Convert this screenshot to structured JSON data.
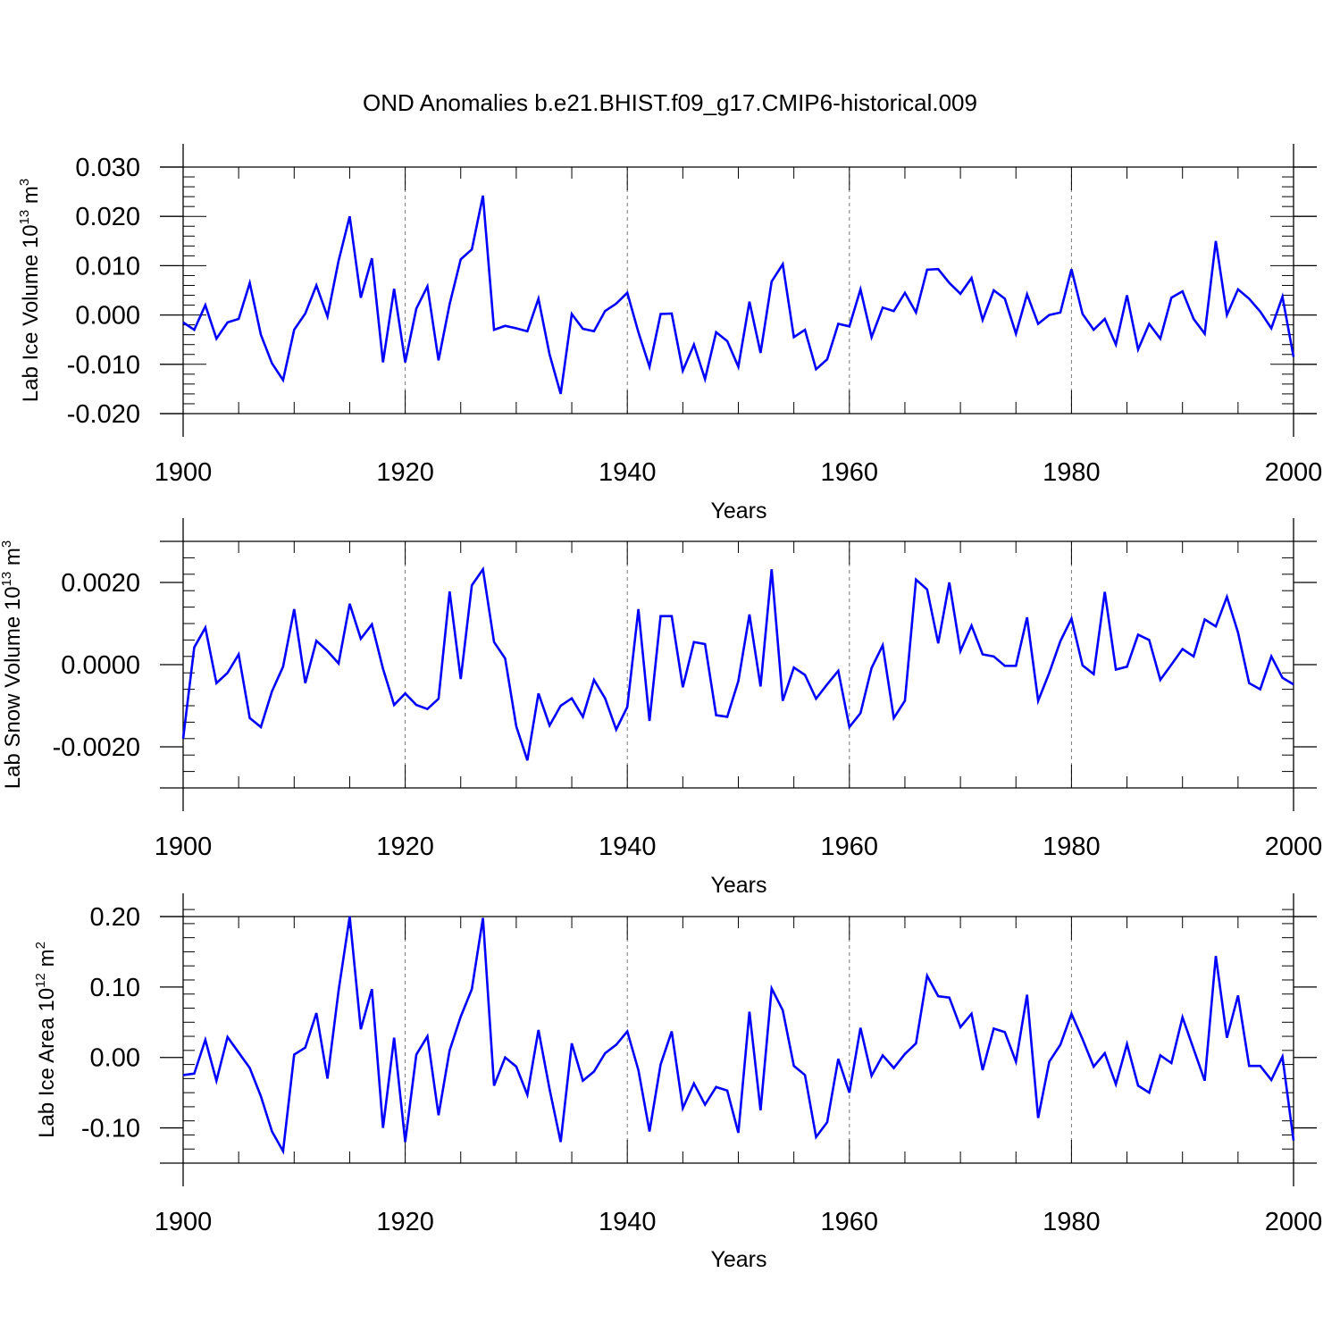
{
  "title": "OND Anomalies b.e21.BHIST.f09_g17.CMIP6-historical.009",
  "colors": {
    "line": "#0000ff",
    "axis": "#000000",
    "grid": "#777777"
  },
  "chart_data": [
    {
      "type": "line",
      "series_name": "Lab Ice Volume",
      "ylabel_main": "Lab Ice Volume 10",
      "ylabel_exp": "13",
      "ylabel_unit": " m",
      "ylabel_unit_exp": "3",
      "xlabel": "Years",
      "xlim": [
        1900,
        2000
      ],
      "ylim": [
        -0.02,
        0.03
      ],
      "yticks": [
        -0.02,
        -0.01,
        0.0,
        0.01,
        0.02,
        0.03
      ],
      "ytick_labels": [
        "-0.020",
        "-0.010",
        "0.000",
        "0.010",
        "0.020",
        "0.030"
      ],
      "xticks": [
        1900,
        1920,
        1940,
        1960,
        1980,
        2000
      ],
      "xtick_labels": [
        "1900",
        "1920",
        "1940",
        "1960",
        "1980",
        "2000"
      ],
      "x_start": 1900,
      "values": [
        -0.0015,
        -0.003,
        0.002,
        -0.0048,
        -0.0015,
        -0.0008,
        0.0065,
        -0.004,
        -0.0098,
        -0.0132,
        -0.003,
        0.0003,
        0.006,
        -0.0003,
        0.011,
        0.02,
        0.0035,
        0.0115,
        -0.0096,
        0.0053,
        -0.0096,
        0.0013,
        0.0058,
        -0.0092,
        0.0022,
        0.0113,
        0.0133,
        0.0242,
        -0.003,
        -0.0022,
        -0.0027,
        -0.0033,
        0.0033,
        -0.008,
        -0.016,
        0.0002,
        -0.0028,
        -0.0033,
        0.0008,
        0.0023,
        0.0045,
        -0.0035,
        -0.0105,
        0.0002,
        0.0003,
        -0.0113,
        -0.006,
        -0.013,
        -0.0035,
        -0.0053,
        -0.0105,
        0.0027,
        -0.0077,
        0.0068,
        0.0103,
        -0.0045,
        -0.003,
        -0.011,
        -0.009,
        -0.0018,
        -0.0023,
        0.0052,
        -0.0045,
        0.0015,
        0.0008,
        0.0045,
        0.0005,
        0.0092,
        0.0093,
        0.0065,
        0.0043,
        0.0075,
        -0.001,
        0.005,
        0.0033,
        -0.0038,
        0.0042,
        -0.0018,
        0.0,
        0.0005,
        0.0093,
        0.0002,
        -0.003,
        -0.0008,
        -0.006,
        0.004,
        -0.007,
        -0.0018,
        -0.0048,
        0.0035,
        0.0048,
        -0.0008,
        -0.0038,
        0.015,
        0.0,
        0.0052,
        0.0033,
        0.0007,
        -0.0027,
        0.0037,
        -0.0085
      ]
    },
    {
      "type": "line",
      "series_name": "Lab Snow Volume",
      "ylabel_main": "Lab Snow Volume 10",
      "ylabel_exp": "13",
      "ylabel_unit": " m",
      "ylabel_unit_exp": "3",
      "xlabel": "Years",
      "xlim": [
        1900,
        2000
      ],
      "ylim": [
        -0.003,
        0.003
      ],
      "yticks": [
        -0.002,
        0.0,
        0.002
      ],
      "ytick_labels": [
        "-0.0020",
        "0.0000",
        "0.0020"
      ],
      "xticks": [
        1900,
        1920,
        1940,
        1960,
        1980,
        2000
      ],
      "xtick_labels": [
        "1900",
        "1920",
        "1940",
        "1960",
        "1980",
        "2000"
      ],
      "x_start": 1900,
      "values": [
        -0.0018,
        0.00042,
        0.0009,
        -0.00045,
        -0.0002,
        0.00025,
        -0.0013,
        -0.00152,
        -0.00065,
        -5e-05,
        0.00135,
        -0.00045,
        0.00058,
        0.00033,
        3e-05,
        0.00148,
        0.00063,
        0.00098,
        -0.0001,
        -0.00098,
        -0.0007,
        -0.00098,
        -0.00108,
        -0.00083,
        0.00178,
        -0.00035,
        0.00193,
        0.00232,
        0.00055,
        0.00015,
        -0.0015,
        -0.00233,
        -0.0007,
        -0.00148,
        -0.001,
        -0.00082,
        -0.00127,
        -0.00037,
        -0.00082,
        -0.00158,
        -0.00103,
        0.00135,
        -0.00137,
        0.00118,
        0.00118,
        -0.00055,
        0.00055,
        0.0005,
        -0.00123,
        -0.00127,
        -0.0004,
        0.00122,
        -0.00053,
        0.00232,
        -0.00088,
        -7e-05,
        -0.00025,
        -0.00083,
        -0.00048,
        -0.00015,
        -0.00152,
        -0.00118,
        -8e-05,
        0.00047,
        -0.0013,
        -0.00088,
        0.00207,
        0.00183,
        0.00052,
        0.002,
        0.00033,
        0.00095,
        0.00025,
        0.0002,
        -3e-05,
        -3e-05,
        0.00115,
        -0.00088,
        -0.0002,
        0.00057,
        0.00112,
        -2e-05,
        -0.00023,
        0.00177,
        -0.00012,
        -5e-05,
        0.00073,
        0.0006,
        -0.00037,
        0.0,
        0.00038,
        0.0002,
        0.0011,
        0.00093,
        0.00165,
        0.00078,
        -0.00045,
        -0.0006,
        0.0002,
        -0.00032,
        -0.00048
      ]
    },
    {
      "type": "line",
      "series_name": "Lab Ice Area",
      "ylabel_main": "Lab Ice Area 10",
      "ylabel_exp": "12",
      "ylabel_unit": " m",
      "ylabel_unit_exp": "2",
      "xlabel": "Years",
      "xlim": [
        1900,
        2000
      ],
      "ylim": [
        -0.15,
        0.2
      ],
      "yticks": [
        -0.1,
        0.0,
        0.1,
        0.2
      ],
      "ytick_labels": [
        "-0.10",
        "0.00",
        "0.10",
        "0.20"
      ],
      "xticks": [
        1900,
        1920,
        1940,
        1960,
        1980,
        2000
      ],
      "xtick_labels": [
        "1900",
        "1920",
        "1940",
        "1960",
        "1980",
        "2000"
      ],
      "x_start": 1900,
      "values": [
        -0.025,
        -0.023,
        0.025,
        -0.033,
        0.029,
        0.007,
        -0.015,
        -0.055,
        -0.105,
        -0.133,
        0.004,
        0.014,
        0.063,
        -0.03,
        0.095,
        0.2,
        0.04,
        0.097,
        -0.1,
        0.028,
        -0.12,
        0.004,
        0.03,
        -0.082,
        0.01,
        0.058,
        0.097,
        0.198,
        -0.04,
        0.0,
        -0.013,
        -0.053,
        0.039,
        -0.045,
        -0.12,
        0.02,
        -0.033,
        -0.02,
        0.006,
        0.018,
        0.037,
        -0.018,
        -0.105,
        -0.01,
        0.037,
        -0.072,
        -0.037,
        -0.067,
        -0.042,
        -0.047,
        -0.107,
        0.065,
        -0.075,
        0.098,
        0.067,
        -0.012,
        -0.025,
        -0.113,
        -0.092,
        -0.002,
        -0.05,
        0.042,
        -0.026,
        0.003,
        -0.015,
        0.005,
        0.02,
        0.116,
        0.087,
        0.085,
        0.043,
        0.062,
        -0.018,
        0.041,
        0.036,
        -0.006,
        0.089,
        -0.086,
        -0.006,
        0.018,
        0.062,
        0.026,
        -0.013,
        0.006,
        -0.038,
        0.019,
        -0.04,
        -0.05,
        0.003,
        -0.008,
        0.057,
        0.012,
        -0.033,
        0.144,
        0.028,
        0.088,
        -0.012,
        -0.012,
        -0.032,
        0.001,
        -0.118
      ]
    }
  ]
}
